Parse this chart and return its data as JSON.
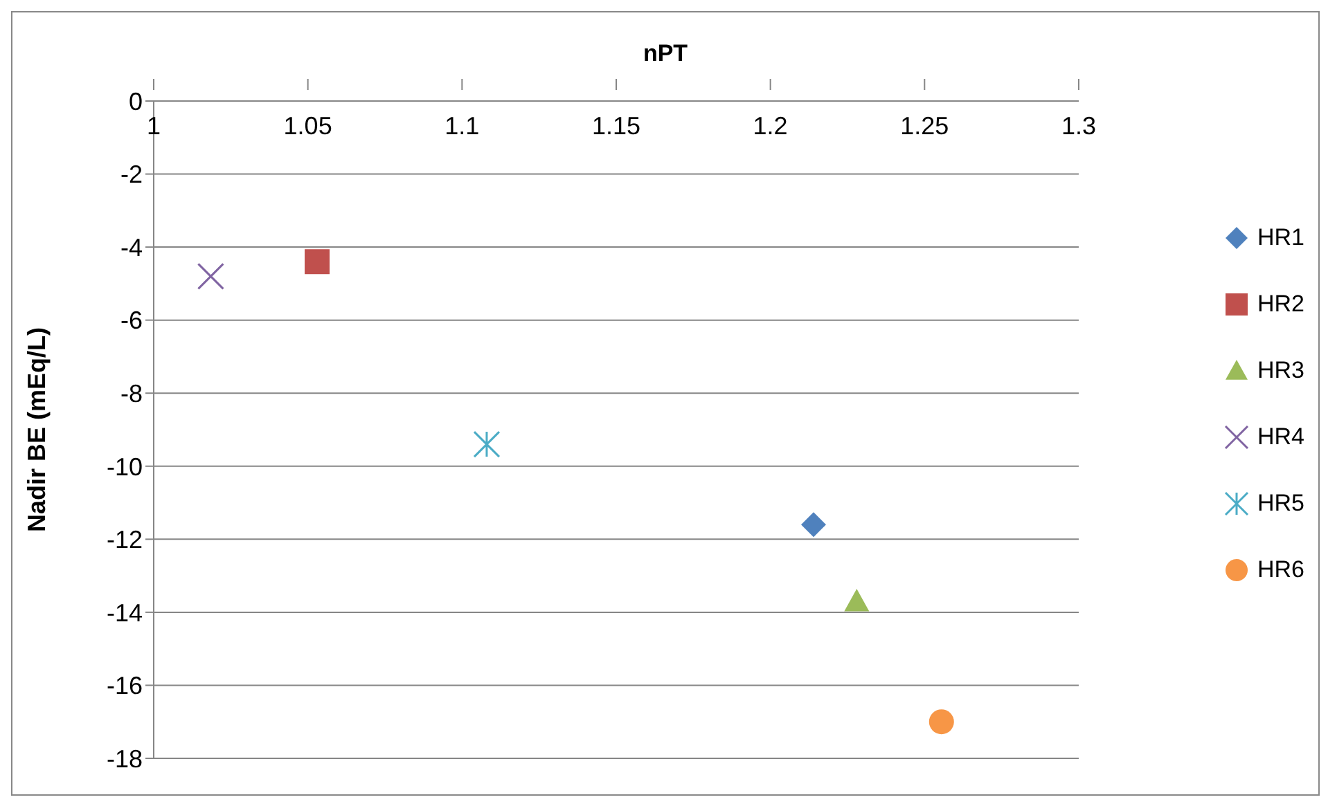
{
  "chart_data": {
    "type": "scatter",
    "title": "nPT",
    "ylabel": "Nadir BE (mEq/L)",
    "xlim": [
      1,
      1.3
    ],
    "xticks": [
      1,
      1.05,
      1.1,
      1.15,
      1.2,
      1.25,
      1.3
    ],
    "ylim": [
      -18,
      0
    ],
    "yticks": [
      -18,
      -16,
      -14,
      -12,
      -10,
      -8,
      -6,
      -4,
      -2,
      0
    ],
    "grid": "y",
    "legend": "right",
    "series": [
      {
        "name": "HR1",
        "color": "#4f81bd",
        "marker": "diamond",
        "x": [
          1.214
        ],
        "values": [
          -11.6
        ]
      },
      {
        "name": "HR2",
        "color": "#c0504d",
        "marker": "square",
        "x": [
          1.053
        ],
        "values": [
          -4.4
        ]
      },
      {
        "name": "HR3",
        "color": "#9bbb59",
        "marker": "triangle",
        "x": [
          1.228
        ],
        "values": [
          -13.7
        ]
      },
      {
        "name": "HR4",
        "color": "#8064a2",
        "marker": "cross",
        "x": [
          1.0185
        ],
        "values": [
          -4.8
        ]
      },
      {
        "name": "HR5",
        "color": "#4bacc6",
        "x": [
          1.108
        ],
        "values": [
          -9.4
        ]
      },
      {
        "name": "HR6",
        "color": "#f79646",
        "marker": "circle",
        "x": [
          1.2555
        ],
        "values": [
          -17
        ]
      }
    ]
  }
}
